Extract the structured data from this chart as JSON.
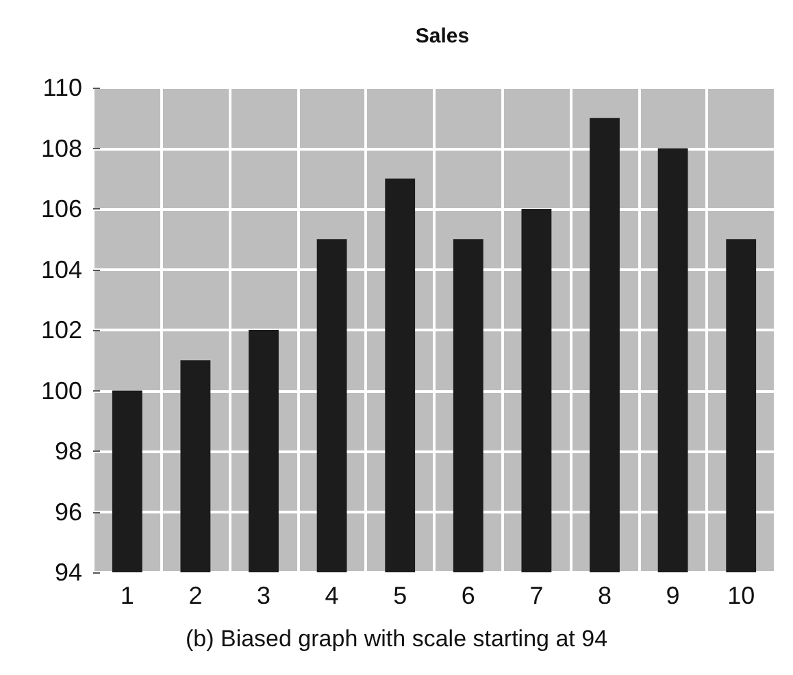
{
  "chart_data": {
    "type": "bar",
    "title": "Sales",
    "categories": [
      "1",
      "2",
      "3",
      "4",
      "5",
      "6",
      "7",
      "8",
      "9",
      "10"
    ],
    "values": [
      100,
      101,
      102,
      105,
      107,
      105,
      106,
      109,
      108,
      105
    ],
    "color": "#1c1c1c",
    "ylim": [
      94,
      110
    ],
    "yticks": [
      94,
      96,
      98,
      100,
      102,
      104,
      106,
      108,
      110
    ],
    "grid": true,
    "annotations": [
      "(b) Biased graph with scale starting at 94"
    ]
  }
}
